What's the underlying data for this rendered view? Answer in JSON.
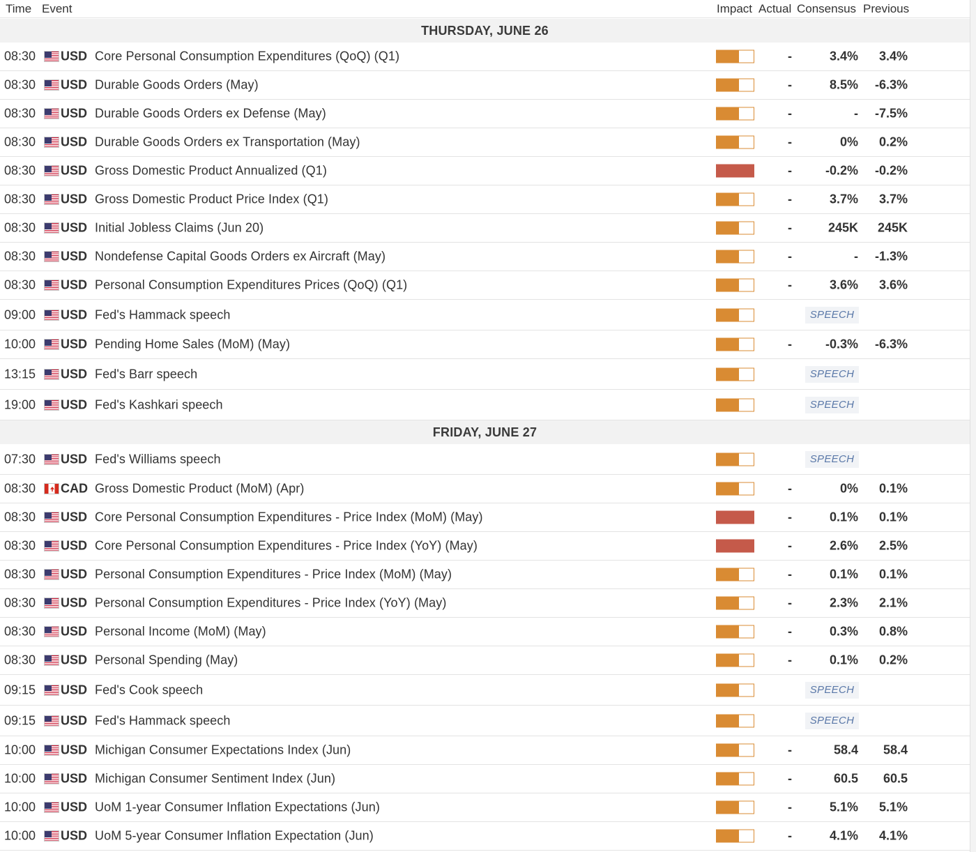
{
  "columns": {
    "time": "Time",
    "event": "Event",
    "impact": "Impact",
    "actual": "Actual",
    "consensus": "Consensus",
    "previous": "Previous"
  },
  "colors": {
    "medium_impact": "#d98b33",
    "high_impact": "#c55a4a",
    "speech_text": "#5a78a8"
  },
  "days": [
    {
      "label": "THURSDAY, JUNE 26",
      "events": [
        {
          "time": "08:30",
          "flag": "us-flag-icon",
          "currency": "USD",
          "name": "Core Personal Consumption Expenditures (QoQ) (Q1)",
          "impact": "medium",
          "impact_level": 0.6,
          "actual": "-",
          "consensus": "3.4%",
          "previous": "3.4%"
        },
        {
          "time": "08:30",
          "flag": "us-flag-icon",
          "currency": "USD",
          "name": "Durable Goods Orders (May)",
          "impact": "medium",
          "impact_level": 0.6,
          "actual": "-",
          "consensus": "8.5%",
          "previous": "-6.3%"
        },
        {
          "time": "08:30",
          "flag": "us-flag-icon",
          "currency": "USD",
          "name": "Durable Goods Orders ex Defense (May)",
          "impact": "medium",
          "impact_level": 0.6,
          "actual": "-",
          "consensus": "-",
          "previous": "-7.5%"
        },
        {
          "time": "08:30",
          "flag": "us-flag-icon",
          "currency": "USD",
          "name": "Durable Goods Orders ex Transportation (May)",
          "impact": "medium",
          "impact_level": 0.6,
          "actual": "-",
          "consensus": "0%",
          "previous": "0.2%"
        },
        {
          "time": "08:30",
          "flag": "us-flag-icon",
          "currency": "USD",
          "name": "Gross Domestic Product Annualized (Q1)",
          "impact": "high",
          "impact_level": 1.0,
          "actual": "-",
          "consensus": "-0.2%",
          "previous": "-0.2%"
        },
        {
          "time": "08:30",
          "flag": "us-flag-icon",
          "currency": "USD",
          "name": "Gross Domestic Product Price Index (Q1)",
          "impact": "medium",
          "impact_level": 0.6,
          "actual": "-",
          "consensus": "3.7%",
          "previous": "3.7%"
        },
        {
          "time": "08:30",
          "flag": "us-flag-icon",
          "currency": "USD",
          "name": "Initial Jobless Claims (Jun 20)",
          "impact": "medium",
          "impact_level": 0.6,
          "actual": "-",
          "consensus": "245K",
          "previous": "245K"
        },
        {
          "time": "08:30",
          "flag": "us-flag-icon",
          "currency": "USD",
          "name": "Nondefense Capital Goods Orders ex Aircraft (May)",
          "impact": "medium",
          "impact_level": 0.6,
          "actual": "-",
          "consensus": "-",
          "previous": "-1.3%"
        },
        {
          "time": "08:30",
          "flag": "us-flag-icon",
          "currency": "USD",
          "name": "Personal Consumption Expenditures Prices (QoQ) (Q1)",
          "impact": "medium",
          "impact_level": 0.6,
          "actual": "-",
          "consensus": "3.6%",
          "previous": "3.6%"
        },
        {
          "time": "09:00",
          "flag": "us-flag-icon",
          "currency": "USD",
          "name": "Fed's Hammack speech",
          "impact": "medium",
          "impact_level": 0.6,
          "speech": "SPEECH"
        },
        {
          "time": "10:00",
          "flag": "us-flag-icon",
          "currency": "USD",
          "name": "Pending Home Sales (MoM) (May)",
          "impact": "medium",
          "impact_level": 0.6,
          "actual": "-",
          "consensus": "-0.3%",
          "previous": "-6.3%"
        },
        {
          "time": "13:15",
          "flag": "us-flag-icon",
          "currency": "USD",
          "name": "Fed's Barr speech",
          "impact": "medium",
          "impact_level": 0.6,
          "speech": "SPEECH"
        },
        {
          "time": "19:00",
          "flag": "us-flag-icon",
          "currency": "USD",
          "name": "Fed's Kashkari speech",
          "impact": "medium",
          "impact_level": 0.6,
          "speech": "SPEECH"
        }
      ]
    },
    {
      "label": "FRIDAY, JUNE 27",
      "events": [
        {
          "time": "07:30",
          "flag": "us-flag-icon",
          "currency": "USD",
          "name": "Fed's Williams speech",
          "impact": "medium",
          "impact_level": 0.6,
          "speech": "SPEECH"
        },
        {
          "time": "08:30",
          "flag": "ca-flag-icon",
          "currency": "CAD",
          "name": "Gross Domestic Product (MoM) (Apr)",
          "impact": "medium",
          "impact_level": 0.6,
          "actual": "-",
          "consensus": "0%",
          "previous": "0.1%"
        },
        {
          "time": "08:30",
          "flag": "us-flag-icon",
          "currency": "USD",
          "name": "Core Personal Consumption Expenditures - Price Index (MoM) (May)",
          "impact": "high",
          "impact_level": 1.0,
          "actual": "-",
          "consensus": "0.1%",
          "previous": "0.1%"
        },
        {
          "time": "08:30",
          "flag": "us-flag-icon",
          "currency": "USD",
          "name": "Core Personal Consumption Expenditures - Price Index (YoY) (May)",
          "impact": "high",
          "impact_level": 1.0,
          "actual": "-",
          "consensus": "2.6%",
          "previous": "2.5%"
        },
        {
          "time": "08:30",
          "flag": "us-flag-icon",
          "currency": "USD",
          "name": "Personal Consumption Expenditures - Price Index (MoM) (May)",
          "impact": "medium",
          "impact_level": 0.6,
          "actual": "-",
          "consensus": "0.1%",
          "previous": "0.1%"
        },
        {
          "time": "08:30",
          "flag": "us-flag-icon",
          "currency": "USD",
          "name": "Personal Consumption Expenditures - Price Index (YoY) (May)",
          "impact": "medium",
          "impact_level": 0.6,
          "actual": "-",
          "consensus": "2.3%",
          "previous": "2.1%"
        },
        {
          "time": "08:30",
          "flag": "us-flag-icon",
          "currency": "USD",
          "name": "Personal Income (MoM) (May)",
          "impact": "medium",
          "impact_level": 0.6,
          "actual": "-",
          "consensus": "0.3%",
          "previous": "0.8%"
        },
        {
          "time": "08:30",
          "flag": "us-flag-icon",
          "currency": "USD",
          "name": "Personal Spending (May)",
          "impact": "medium",
          "impact_level": 0.6,
          "actual": "-",
          "consensus": "0.1%",
          "previous": "0.2%"
        },
        {
          "time": "09:15",
          "flag": "us-flag-icon",
          "currency": "USD",
          "name": "Fed's Cook speech",
          "impact": "medium",
          "impact_level": 0.6,
          "speech": "SPEECH"
        },
        {
          "time": "09:15",
          "flag": "us-flag-icon",
          "currency": "USD",
          "name": "Fed's Hammack speech",
          "impact": "medium",
          "impact_level": 0.6,
          "speech": "SPEECH"
        },
        {
          "time": "10:00",
          "flag": "us-flag-icon",
          "currency": "USD",
          "name": "Michigan Consumer Expectations Index (Jun)",
          "impact": "medium",
          "impact_level": 0.6,
          "actual": "-",
          "consensus": "58.4",
          "previous": "58.4"
        },
        {
          "time": "10:00",
          "flag": "us-flag-icon",
          "currency": "USD",
          "name": "Michigan Consumer Sentiment Index (Jun)",
          "impact": "medium",
          "impact_level": 0.6,
          "actual": "-",
          "consensus": "60.5",
          "previous": "60.5"
        },
        {
          "time": "10:00",
          "flag": "us-flag-icon",
          "currency": "USD",
          "name": "UoM 1-year Consumer Inflation Expectations (Jun)",
          "impact": "medium",
          "impact_level": 0.6,
          "actual": "-",
          "consensus": "5.1%",
          "previous": "5.1%"
        },
        {
          "time": "10:00",
          "flag": "us-flag-icon",
          "currency": "USD",
          "name": "UoM 5-year Consumer Inflation Expectation (Jun)",
          "impact": "medium",
          "impact_level": 0.6,
          "actual": "-",
          "consensus": "4.1%",
          "previous": "4.1%"
        }
      ]
    }
  ]
}
